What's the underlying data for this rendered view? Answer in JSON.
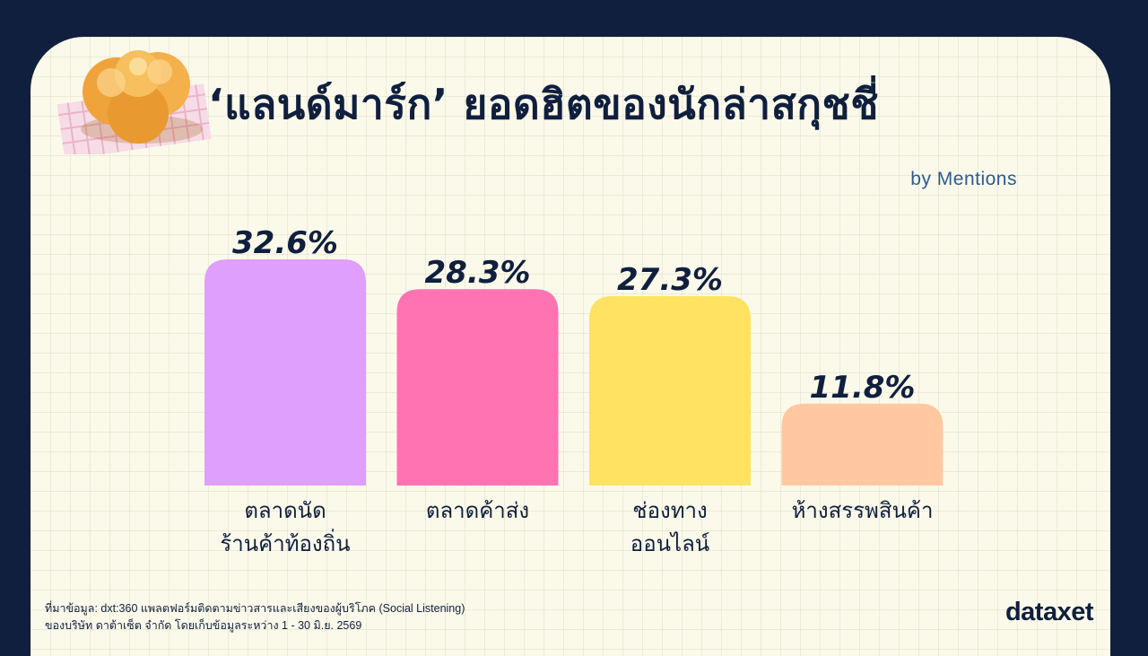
{
  "title": "‘แลนด์มาร์ก’ ยอดฮิตของนักล่าสกุชชี่",
  "subtitle": "by Mentions",
  "chart_data": {
    "type": "bar",
    "categories": [
      [
        "ตลาดนัด",
        "ร้านค้าท้องถิ่น"
      ],
      [
        "ตลาดค้าส่ง"
      ],
      [
        "ช่องทาง",
        "ออนไลน์"
      ],
      [
        "ห้างสรรพสินค้า"
      ]
    ],
    "values": [
      32.6,
      28.3,
      27.3,
      11.8
    ],
    "value_labels": [
      "32.6%",
      "28.3%",
      "27.3%",
      "11.8%"
    ],
    "colors": [
      "#df9ffc",
      "#ff73b3",
      "#ffe261",
      "#ffc8a1"
    ],
    "ylim": [
      0,
      32.6
    ],
    "grid": false,
    "legend": "none"
  },
  "source": {
    "line1": "ที่มาข้อมูล: dxt:360 แพลตฟอร์มติดตามข่าวสารและเสียงของผู้บริโภค (Social Listening)",
    "line2": "ของบริษัท ดาต้าเซ็ต จำกัด โดยเก็บข้อมูลระหว่าง 1 - 30 มิ.ย. 2569"
  },
  "brand": "dataxet",
  "colors": {
    "background": "#0f1f3d",
    "card": "#fbf9ea",
    "text": "#0f1f3d",
    "subtitle": "#2d5a96"
  }
}
